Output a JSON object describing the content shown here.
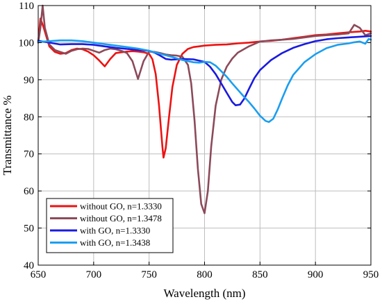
{
  "chart_data": {
    "type": "line",
    "xlabel": "Wavelength (nm)",
    "ylabel": "Transmittance %",
    "xlim": [
      650,
      950
    ],
    "ylim": [
      40,
      110
    ],
    "xticks": [
      650,
      700,
      750,
      800,
      850,
      900,
      950
    ],
    "yticks": [
      40,
      50,
      60,
      70,
      80,
      90,
      100,
      110
    ],
    "xtick_labels": [
      "650",
      "700",
      "750",
      "800",
      "850",
      "900",
      "950"
    ],
    "ytick_labels": [
      "40",
      "50",
      "60",
      "70",
      "80",
      "90",
      "100",
      "110"
    ],
    "grid": true,
    "legend_position": "bottom-left",
    "series": [
      {
        "name": "without GO, n=1.3330",
        "color": "#ee1111",
        "x": [
          650,
          652,
          655,
          660,
          665,
          670,
          675,
          680,
          685,
          690,
          695,
          700,
          705,
          710,
          715,
          720,
          725,
          730,
          735,
          740,
          745,
          750,
          753,
          756,
          759,
          762,
          763,
          765,
          768,
          771,
          775,
          780,
          785,
          790,
          795,
          800,
          810,
          820,
          830,
          840,
          850,
          860,
          870,
          880,
          890,
          900,
          910,
          920,
          930,
          940,
          945,
          950
        ],
        "y": [
          100,
          106.5,
          104,
          99,
          97.5,
          97,
          97.2,
          98,
          98.4,
          98.2,
          97.6,
          96.6,
          95.2,
          93.6,
          95.6,
          97.2,
          97.4,
          97.6,
          97.7,
          97.6,
          97.4,
          97,
          95.5,
          91.5,
          83,
          72,
          69,
          71.5,
          80,
          88,
          94,
          97,
          98.3,
          98.8,
          99,
          99.2,
          99.4,
          99.5,
          99.8,
          100,
          100.3,
          100.5,
          100.8,
          101.2,
          101.6,
          102,
          102.2,
          102.5,
          102.8,
          103,
          103.2,
          103
        ]
      },
      {
        "name": "without GO, n=1.3478",
        "color": "#8b4a5a",
        "x": [
          650,
          652,
          654,
          656,
          660,
          665,
          670,
          675,
          680,
          685,
          690,
          695,
          700,
          705,
          710,
          715,
          720,
          725,
          730,
          735,
          740,
          745,
          750,
          755,
          760,
          765,
          770,
          775,
          780,
          785,
          788,
          791,
          794,
          797,
          800,
          803,
          806,
          810,
          815,
          820,
          825,
          830,
          840,
          850,
          860,
          870,
          880,
          890,
          900,
          910,
          920,
          930,
          935,
          940,
          945,
          950
        ],
        "y": [
          100,
          104,
          110,
          104,
          99.5,
          98,
          97.5,
          97,
          97.8,
          98.2,
          98.4,
          98.3,
          97.8,
          97.3,
          98,
          98.4,
          98.2,
          97.8,
          97.2,
          95,
          90.2,
          95,
          97.6,
          97.5,
          97.2,
          96.8,
          96.6,
          96.5,
          96.2,
          94,
          89,
          79,
          66,
          56.5,
          54,
          60,
          72,
          83,
          90,
          93.5,
          95.7,
          97.3,
          99,
          100.3,
          100.6,
          100.8,
          101,
          101.4,
          101.8,
          102,
          102.2,
          102.5,
          104.8,
          104,
          102,
          102.5
        ]
      },
      {
        "name": "with GO, n=1.3330",
        "color": "#1a1ae0",
        "x": [
          650,
          660,
          670,
          680,
          690,
          700,
          710,
          720,
          730,
          740,
          750,
          755,
          760,
          765,
          770,
          780,
          790,
          800,
          805,
          810,
          815,
          820,
          825,
          828,
          832,
          836,
          840,
          845,
          850,
          860,
          870,
          880,
          890,
          900,
          910,
          920,
          930,
          940,
          950
        ],
        "y": [
          100.5,
          100,
          99.5,
          99.6,
          99.6,
          99.4,
          99,
          98.6,
          98.3,
          98,
          97.8,
          97.3,
          96.5,
          95.6,
          95.4,
          95.6,
          95.5,
          94.8,
          93.5,
          91.5,
          89,
          86.5,
          84,
          83.1,
          83.3,
          85,
          87.5,
          90.5,
          92.6,
          95.3,
          97.2,
          98.6,
          99.6,
          100.4,
          100.9,
          101.2,
          101.4,
          101.6,
          101.8
        ]
      },
      {
        "name": "with GO, n=1.3438",
        "color": "#1a9ef0",
        "x": [
          650,
          660,
          670,
          680,
          690,
          700,
          710,
          720,
          730,
          740,
          750,
          760,
          770,
          780,
          790,
          795,
          800,
          805,
          810,
          815,
          820,
          825,
          830,
          835,
          840,
          845,
          850,
          855,
          858,
          862,
          866,
          870,
          875,
          880,
          890,
          900,
          910,
          920,
          930,
          935,
          940,
          945,
          948,
          950
        ],
        "y": [
          100.2,
          100.4,
          100.6,
          100.6,
          100.4,
          100,
          99.6,
          99.2,
          98.8,
          98.4,
          97.8,
          97,
          96.2,
          95.3,
          94.7,
          94.6,
          94.8,
          94.7,
          93.8,
          92.3,
          90.8,
          89,
          87.3,
          85.6,
          84,
          82.2,
          80.3,
          78.9,
          78.6,
          79.5,
          82,
          85,
          88.5,
          91.3,
          94.7,
          96.9,
          98.5,
          99.4,
          99.8,
          100.1,
          100.3,
          99.7,
          101,
          100.8
        ]
      }
    ]
  }
}
